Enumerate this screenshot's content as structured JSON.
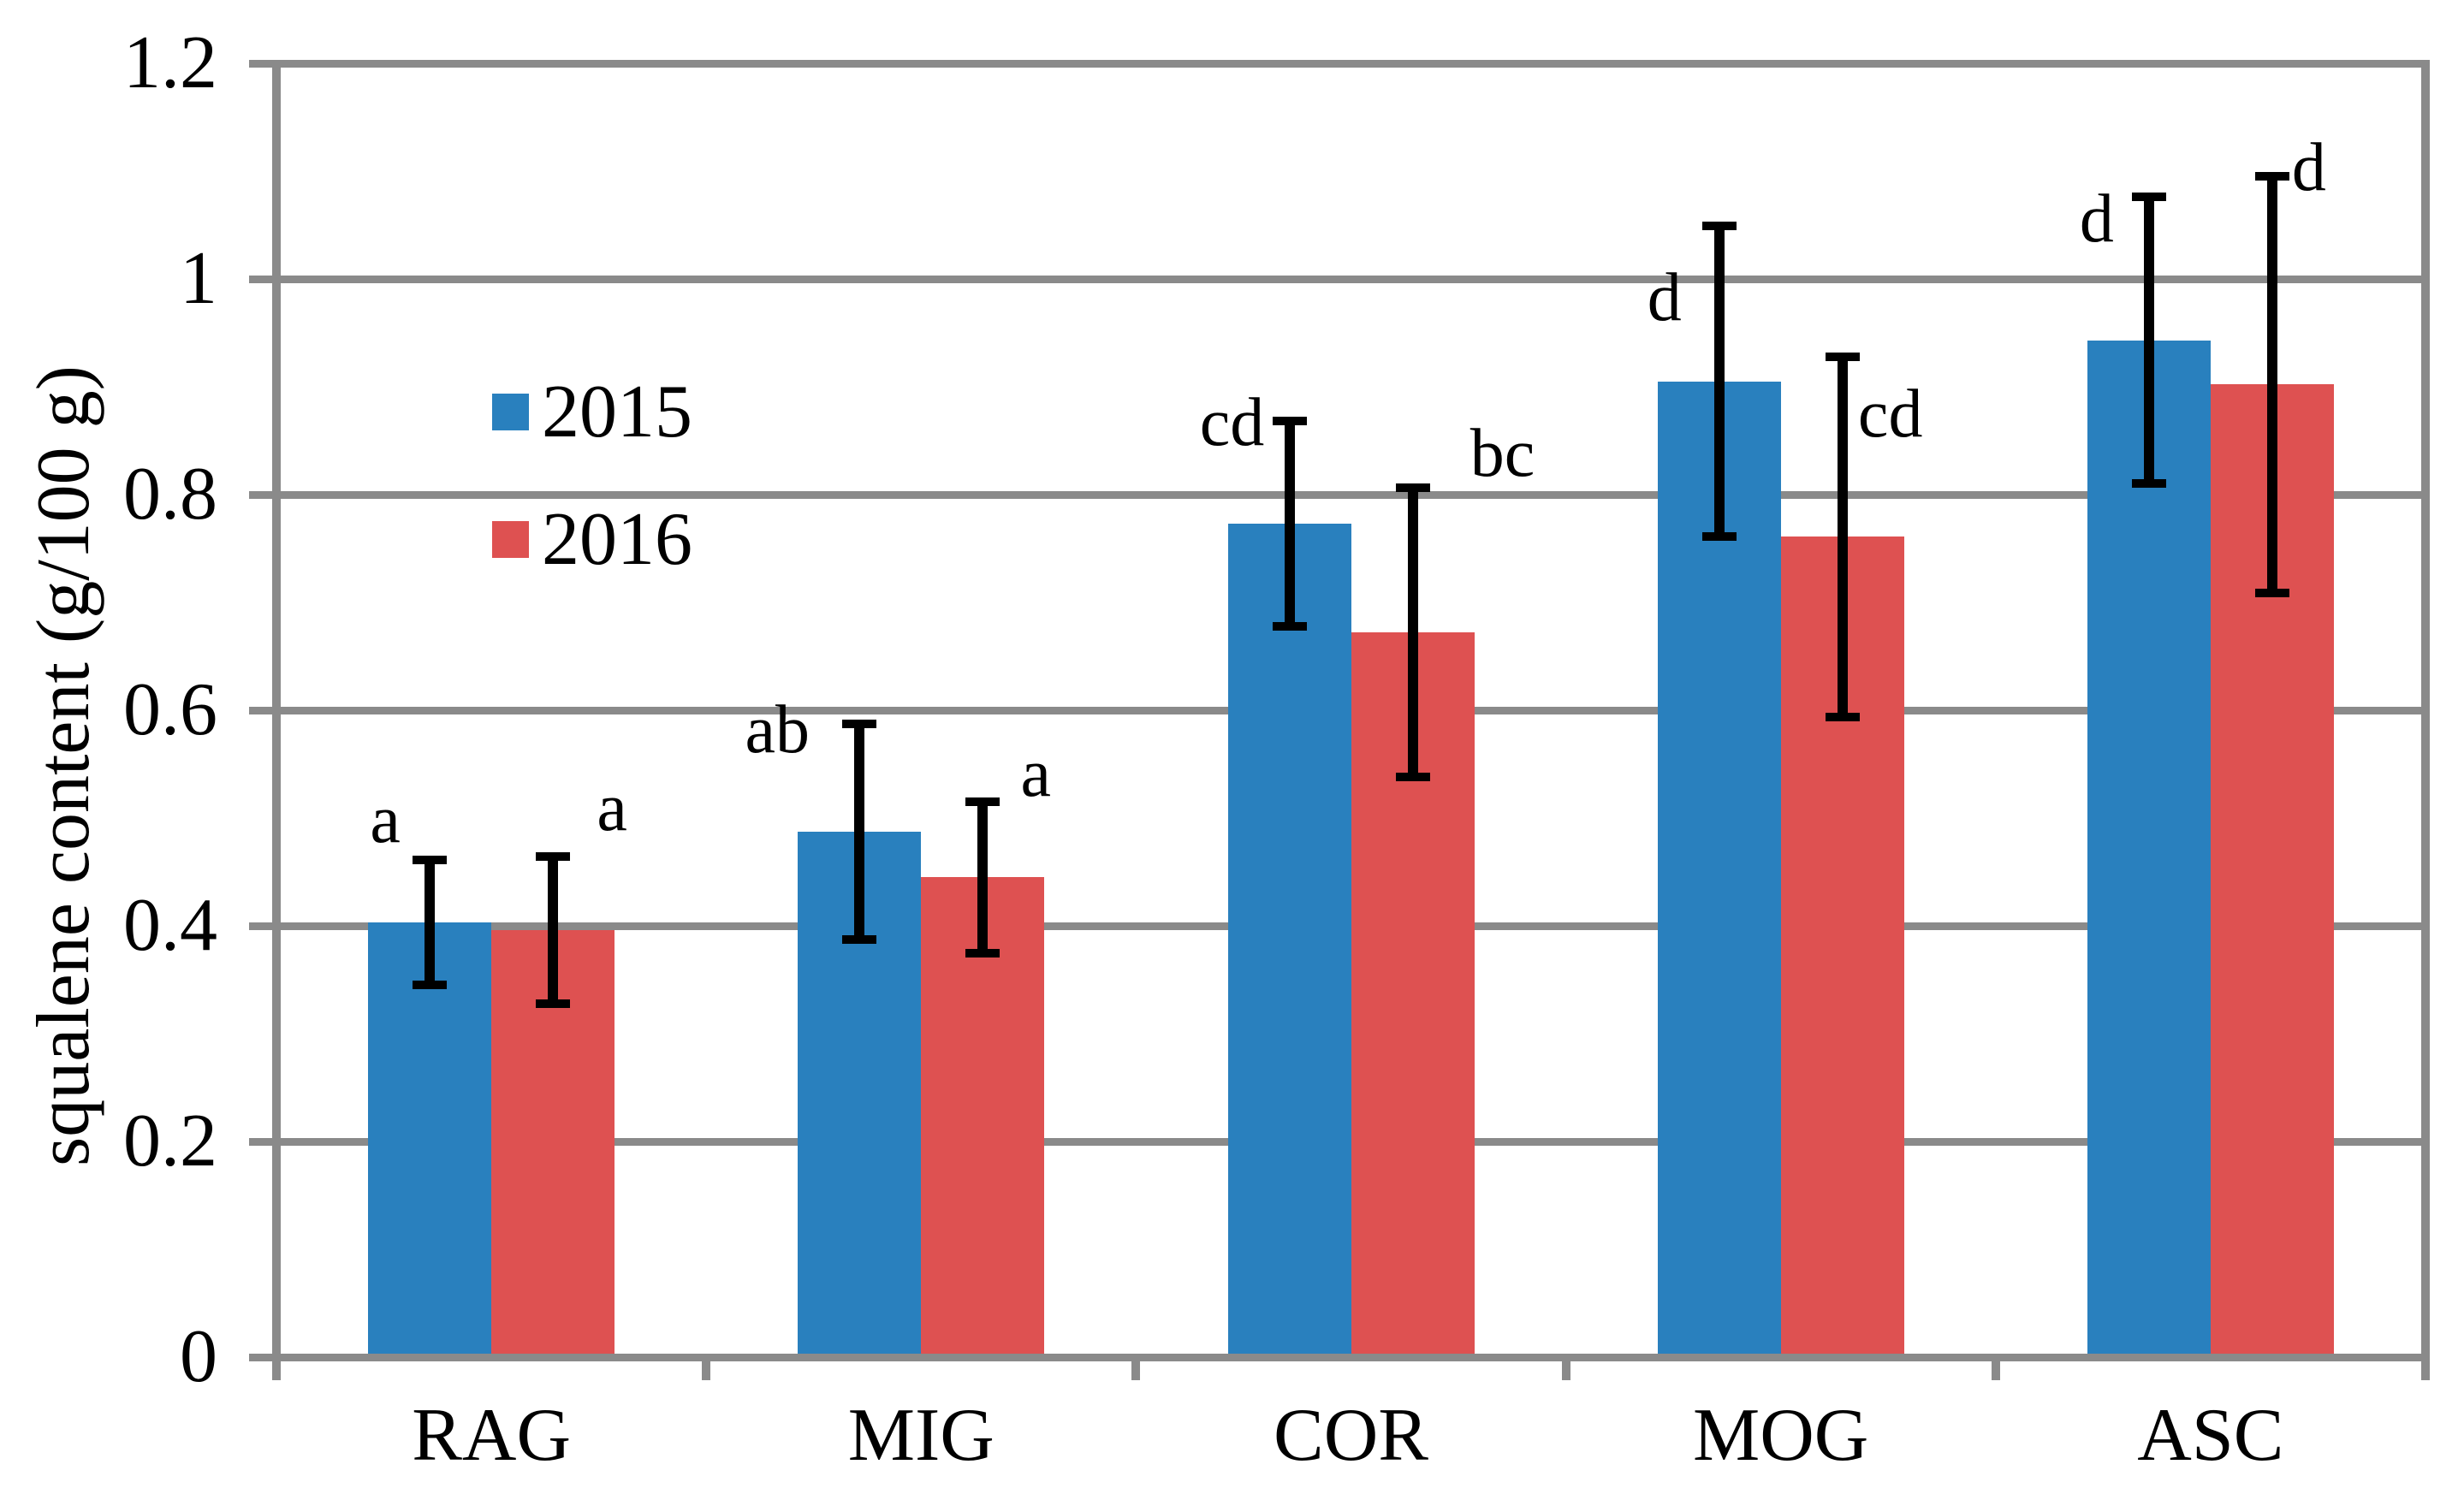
{
  "chart_data": {
    "type": "bar",
    "title": "",
    "xlabel": "",
    "ylabel": "squalene content (g/100 g)",
    "categories": [
      "RAG",
      "MIG",
      "COR",
      "MOG",
      "ASC"
    ],
    "series": [
      {
        "name": "2015",
        "color": "#2980BE",
        "values": [
          0.403,
          0.487,
          0.773,
          0.905,
          0.943
        ],
        "errors": [
          0.062,
          0.104,
          0.099,
          0.148,
          0.137
        ],
        "sig_letters": [
          "a",
          "ab",
          "cd",
          "d",
          "d"
        ]
      },
      {
        "name": "2016",
        "color": "#DE5151",
        "values": [
          0.396,
          0.445,
          0.672,
          0.761,
          0.902
        ],
        "errors": [
          0.072,
          0.074,
          0.138,
          0.171,
          0.197
        ],
        "sig_letters": [
          "a",
          "a",
          "bc",
          "cd",
          "d"
        ]
      }
    ],
    "ylim": [
      0,
      1.2
    ],
    "yticks": [
      0,
      0.2,
      0.4,
      0.6,
      0.8,
      1,
      1.2
    ],
    "ytick_labels": [
      "0",
      "0.2",
      "0.4",
      "0.6",
      "0.8",
      "1",
      "1.2"
    ],
    "grid": "horizontal",
    "error_bars": true,
    "legend_position": "inside upper-left"
  },
  "colors": {
    "axis": "#8A8A8A",
    "grid": "#8A8A8A",
    "error_bar": "#000000",
    "text": "#000000",
    "background": "#FFFFFF"
  }
}
